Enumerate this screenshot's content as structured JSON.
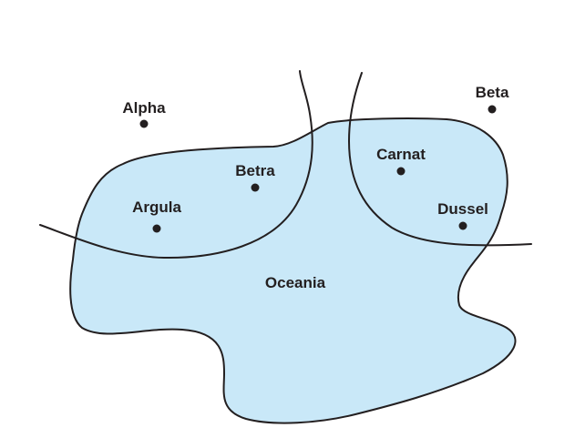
{
  "map": {
    "region": {
      "name": "Oceania",
      "fill_color": "#c9e8f8"
    },
    "line_color": "#231f20",
    "places": [
      {
        "key": "alpha",
        "name": "Alpha"
      },
      {
        "key": "beta",
        "name": "Beta"
      },
      {
        "key": "betra",
        "name": "Betra"
      },
      {
        "key": "argula",
        "name": "Argula"
      },
      {
        "key": "carnat",
        "name": "Carnat"
      },
      {
        "key": "dussel",
        "name": "Dussel"
      }
    ]
  }
}
